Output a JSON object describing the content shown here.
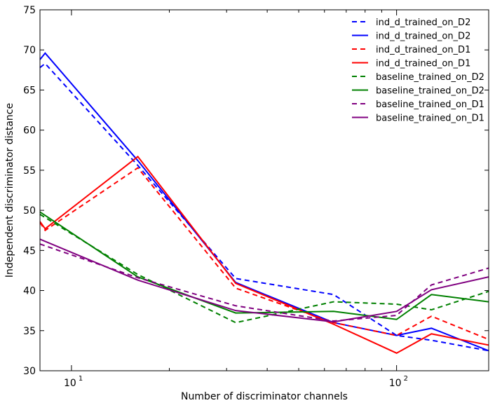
{
  "chart_data": {
    "type": "line",
    "title": "",
    "xlabel": "Number of discriminator channels",
    "ylabel": "Independent discriminator distance",
    "xscale": "log",
    "xlim": [
      8,
      192
    ],
    "ylim": [
      30,
      75
    ],
    "x_tick_major": [
      10,
      100
    ],
    "x_tick_labels": [
      "10",
      "10"
    ],
    "x_tick_label_superscripts": [
      "1",
      "2"
    ],
    "x_tick_minor": [
      20,
      30,
      40,
      50,
      60,
      70,
      80,
      90
    ],
    "y_ticks": [
      30,
      35,
      40,
      45,
      50,
      55,
      60,
      65,
      70,
      75
    ],
    "y_tick_labels": [
      "30",
      "35",
      "40",
      "45",
      "50",
      "55",
      "60",
      "65",
      "70",
      "75"
    ],
    "grid": false,
    "legend_position": "top-right",
    "series": [
      {
        "name": "ind_d_trained_on_D2",
        "color": "#0000ff",
        "style": "dashed",
        "points": [
          [
            8,
            67.8
          ],
          [
            8.3,
            68.3
          ],
          [
            16,
            55.6
          ],
          [
            32,
            41.5
          ],
          [
            64,
            39.5
          ],
          [
            100,
            34.4
          ],
          [
            128,
            33.8
          ],
          [
            192,
            32.5
          ]
        ]
      },
      {
        "name": "ind_d_trained_on_D2",
        "color": "#0000ff",
        "style": "solid",
        "points": [
          [
            8,
            68.8
          ],
          [
            8.3,
            69.6
          ],
          [
            16,
            56.2
          ],
          [
            32,
            41.0
          ],
          [
            64,
            36.0
          ],
          [
            100,
            34.4
          ],
          [
            128,
            35.3
          ],
          [
            192,
            32.5
          ]
        ]
      },
      {
        "name": "ind_d_trained_on_D1",
        "color": "#ff0000",
        "style": "dashed",
        "points": [
          [
            8,
            48.5
          ],
          [
            8.3,
            47.5
          ],
          [
            16,
            55.3
          ],
          [
            32,
            40.3
          ],
          [
            64,
            36.0
          ],
          [
            100,
            34.4
          ],
          [
            128,
            36.8
          ],
          [
            192,
            33.9
          ]
        ]
      },
      {
        "name": "ind_d_trained_on_D1",
        "color": "#ff0000",
        "style": "solid",
        "points": [
          [
            8,
            48.6
          ],
          [
            8.3,
            47.7
          ],
          [
            16,
            56.7
          ],
          [
            32,
            40.9
          ],
          [
            64,
            35.8
          ],
          [
            100,
            32.2
          ],
          [
            128,
            34.6
          ],
          [
            192,
            33.2
          ]
        ]
      },
      {
        "name": "baseline_trained_on_D2",
        "color": "#008000",
        "style": "dashed",
        "points": [
          [
            8,
            49.5
          ],
          [
            16,
            42.0
          ],
          [
            32,
            36.0
          ],
          [
            64,
            38.6
          ],
          [
            100,
            38.3
          ],
          [
            128,
            37.6
          ],
          [
            192,
            39.9
          ]
        ]
      },
      {
        "name": "baseline_trained_on_D2",
        "color": "#008000",
        "style": "solid",
        "points": [
          [
            8,
            49.8
          ],
          [
            16,
            41.7
          ],
          [
            32,
            37.2
          ],
          [
            64,
            37.4
          ],
          [
            100,
            36.4
          ],
          [
            128,
            39.5
          ],
          [
            192,
            38.6
          ]
        ]
      },
      {
        "name": "baseline_trained_on_D1",
        "color": "#800080",
        "style": "dashed",
        "points": [
          [
            8,
            45.8
          ],
          [
            16,
            41.6
          ],
          [
            32,
            38.1
          ],
          [
            64,
            36.2
          ],
          [
            100,
            36.9
          ],
          [
            128,
            40.7
          ],
          [
            192,
            42.8
          ]
        ]
      },
      {
        "name": "baseline_trained_on_D1",
        "color": "#800080",
        "style": "solid",
        "points": [
          [
            8,
            46.4
          ],
          [
            16,
            41.3
          ],
          [
            32,
            37.5
          ],
          [
            64,
            36.1
          ],
          [
            100,
            37.4
          ],
          [
            128,
            40.1
          ],
          [
            192,
            41.7
          ]
        ]
      }
    ]
  }
}
